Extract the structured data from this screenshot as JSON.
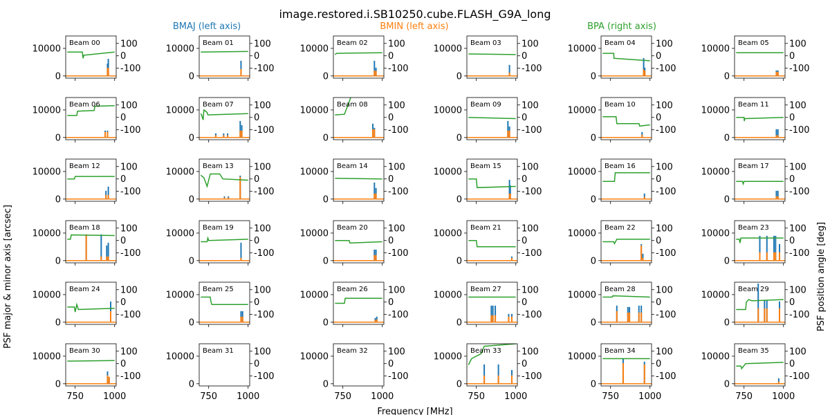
{
  "figure": {
    "title": "image.restored.i.SB10250.cube.FLASH_G9A_long",
    "xlabel": "Frequency [MHz]",
    "ylabel_left": "PSF major & minor axis [arcsec]",
    "ylabel_right": "PSF position angle [deg]",
    "legend": [
      {
        "label": "BMAJ (left axis)",
        "color": "#1f77b4"
      },
      {
        "label": "BMIN (left axis)",
        "color": "#ff7f0e"
      },
      {
        "label": "BPA (right axis)",
        "color": "#2ca02c"
      }
    ],
    "colors": {
      "bmaj": "#1f77b4",
      "bmin": "#ff7f0e",
      "bpa": "#2ca02c"
    }
  },
  "chart_data": {
    "type": "line",
    "grid": false,
    "layout": {
      "rows": 6,
      "cols": 6
    },
    "xlim": [
      690,
      1010
    ],
    "x_ticks": [
      750,
      1000
    ],
    "left_ylim": [
      -800,
      14500
    ],
    "left_y_ticks": [
      0,
      10000
    ],
    "right_ylim": [
      -180,
      160
    ],
    "right_y_ticks": [
      100,
      0,
      -100
    ],
    "beams": [
      {
        "label": "Beam 00",
        "bpa": [
          [
            700,
            30
          ],
          [
            795,
            30
          ],
          [
            800,
            -20
          ],
          [
            805,
            5
          ],
          [
            1000,
            30
          ]
        ],
        "peaks": [
          [
            955,
            4500,
            2800
          ],
          [
            960,
            6200,
            3000
          ]
        ]
      },
      {
        "label": "Beam 01",
        "bpa": [
          [
            700,
            30
          ],
          [
            1000,
            35
          ]
        ],
        "peaks": [
          [
            955,
            5500,
            2500
          ]
        ]
      },
      {
        "label": "Beam 02",
        "bpa": [
          [
            700,
            10
          ],
          [
            710,
            20
          ],
          [
            1000,
            25
          ]
        ],
        "peaks": [
          [
            950,
            5500,
            2000
          ],
          [
            960,
            3000,
            1800
          ]
        ]
      },
      {
        "label": "Beam 03",
        "bpa": [
          [
            700,
            15
          ],
          [
            1000,
            10
          ]
        ],
        "peaks": [
          [
            960,
            4000,
            1200
          ]
        ]
      },
      {
        "label": "Beam 04",
        "bpa": [
          [
            700,
            20
          ],
          [
            770,
            20
          ],
          [
            772,
            -20
          ],
          [
            1000,
            -40
          ]
        ],
        "peaks": [
          [
            960,
            6500,
            2500
          ],
          [
            967,
            3000,
            2000
          ]
        ]
      },
      {
        "label": "Beam 05",
        "bpa": [
          [
            700,
            25
          ],
          [
            1000,
            25
          ]
        ],
        "peaks": [
          [
            955,
            2000,
            1500
          ],
          [
            965,
            2000,
            1500
          ]
        ]
      },
      {
        "label": "Beam 06",
        "bpa": [
          [
            700,
            15
          ],
          [
            760,
            15
          ],
          [
            765,
            50
          ],
          [
            870,
            55
          ],
          [
            875,
            90
          ],
          [
            1000,
            95
          ]
        ],
        "peaks": [
          [
            940,
            2500,
            2000
          ],
          [
            955,
            2500,
            2000
          ]
        ]
      },
      {
        "label": "Beam 07",
        "bpa": [
          [
            700,
            30
          ],
          [
            705,
            20
          ],
          [
            715,
            -20
          ],
          [
            720,
            60
          ],
          [
            740,
            40
          ],
          [
            745,
            20
          ],
          [
            1000,
            30
          ]
        ],
        "peaks": [
          [
            795,
            1500,
            800
          ],
          [
            845,
            1500,
            800
          ],
          [
            870,
            1500,
            800
          ],
          [
            950,
            6000,
            2500
          ],
          [
            960,
            4500,
            2500
          ]
        ]
      },
      {
        "label": "Beam 08",
        "bpa": [
          [
            700,
            20
          ],
          [
            760,
            25
          ],
          [
            800,
            160
          ]
        ],
        "peaks": [
          [
            940,
            5000,
            3000
          ],
          [
            950,
            3500,
            3000
          ]
        ]
      },
      {
        "label": "Beam 09",
        "bpa": [
          [
            700,
            0
          ],
          [
            1000,
            -10
          ]
        ],
        "peaks": [
          [
            950,
            6000,
            2500
          ],
          [
            960,
            4000,
            2500
          ]
        ]
      },
      {
        "label": "Beam 10",
        "bpa": [
          [
            700,
            5
          ],
          [
            785,
            5
          ],
          [
            790,
            -50
          ],
          [
            930,
            -50
          ],
          [
            935,
            -70
          ],
          [
            1000,
            -60
          ]
        ],
        "peaks": [
          [
            950,
            2000,
            1000
          ]
        ]
      },
      {
        "label": "Beam 11",
        "bpa": [
          [
            700,
            0
          ],
          [
            750,
            0
          ],
          [
            752,
            -30
          ],
          [
            755,
            -10
          ],
          [
            1000,
            0
          ]
        ],
        "peaks": [
          [
            955,
            3000,
            800
          ],
          [
            965,
            3000,
            800
          ]
        ]
      },
      {
        "label": "Beam 12",
        "bpa": [
          [
            700,
            0
          ],
          [
            745,
            0
          ],
          [
            750,
            20
          ],
          [
            1000,
            20
          ]
        ],
        "peaks": [
          [
            945,
            3000,
            1500
          ],
          [
            960,
            4500,
            1500
          ]
        ]
      },
      {
        "label": "Beam 13",
        "bpa": [
          [
            700,
            30
          ],
          [
            720,
            10
          ],
          [
            740,
            -60
          ],
          [
            760,
            40
          ],
          [
            820,
            40
          ],
          [
            840,
            0
          ],
          [
            1000,
            -10
          ]
        ],
        "peaks": [
          [
            850,
            1000,
            500
          ],
          [
            875,
            1000,
            500
          ],
          [
            950,
            8500,
            8000
          ]
        ]
      },
      {
        "label": "Beam 14",
        "bpa": [
          [
            700,
            5
          ],
          [
            1000,
            0
          ]
        ],
        "peaks": [
          [
            950,
            6000,
            2000
          ],
          [
            960,
            4000,
            2000
          ]
        ]
      },
      {
        "label": "Beam 15",
        "bpa": [
          [
            700,
            0
          ],
          [
            750,
            0
          ],
          [
            755,
            -70
          ],
          [
            1000,
            -60
          ]
        ],
        "peaks": [
          [
            960,
            7000,
            2000
          ],
          [
            965,
            5000,
            2000
          ]
        ]
      },
      {
        "label": "Beam 16",
        "bpa": [
          [
            700,
            -20
          ],
          [
            775,
            -20
          ],
          [
            780,
            50
          ],
          [
            1000,
            50
          ]
        ],
        "peaks": [
          [
            965,
            2000,
            800
          ]
        ]
      },
      {
        "label": "Beam 17",
        "bpa": [
          [
            700,
            -20
          ],
          [
            740,
            -20
          ],
          [
            745,
            -40
          ],
          [
            750,
            -20
          ],
          [
            1000,
            -20
          ]
        ],
        "peaks": [
          [
            955,
            3000,
            1000
          ],
          [
            965,
            3000,
            1000
          ]
        ]
      },
      {
        "label": "Beam 18",
        "bpa": [
          [
            700,
            10
          ],
          [
            720,
            10
          ],
          [
            725,
            45
          ],
          [
            1000,
            40
          ]
        ],
        "peaks": [
          [
            820,
            9500,
            9500
          ],
          [
            915,
            9500,
            1500
          ],
          [
            950,
            5500,
            1500
          ],
          [
            960,
            6500,
            1500
          ]
        ]
      },
      {
        "label": "Beam 19",
        "bpa": [
          [
            700,
            -10
          ],
          [
            740,
            -10
          ],
          [
            745,
            20
          ],
          [
            750,
            0
          ],
          [
            1000,
            10
          ]
        ],
        "peaks": [
          [
            955,
            6500,
            1000
          ]
        ]
      },
      {
        "label": "Beam 20",
        "bpa": [
          [
            700,
            0
          ],
          [
            790,
            0
          ],
          [
            795,
            -20
          ],
          [
            1000,
            -10
          ]
        ],
        "peaks": [
          [
            950,
            4000,
            2000
          ],
          [
            960,
            4000,
            2000
          ]
        ]
      },
      {
        "label": "Beam 21",
        "bpa": [
          [
            700,
            0
          ],
          [
            750,
            0
          ],
          [
            755,
            -50
          ],
          [
            1000,
            -50
          ]
        ],
        "peaks": [
          [
            975,
            1500,
            1000
          ]
        ]
      },
      {
        "label": "Beam 22",
        "bpa": [
          [
            700,
            -10
          ],
          [
            770,
            -10
          ],
          [
            775,
            -25
          ],
          [
            790,
            10
          ],
          [
            1000,
            10
          ]
        ],
        "peaks": [
          [
            945,
            6000,
            5500
          ],
          [
            955,
            2500,
            1000
          ]
        ]
      },
      {
        "label": "Beam 23",
        "bpa": [
          [
            700,
            10
          ],
          [
            720,
            10
          ],
          [
            725,
            -20
          ],
          [
            730,
            20
          ],
          [
            1000,
            20
          ]
        ],
        "peaks": [
          [
            850,
            9000,
            3000
          ],
          [
            895,
            9000,
            3000
          ],
          [
            940,
            9000,
            3000
          ],
          [
            950,
            9000,
            3000
          ],
          [
            975,
            6000,
            3000
          ]
        ]
      },
      {
        "label": "Beam 24",
        "bpa": [
          [
            700,
            -40
          ],
          [
            745,
            -40
          ],
          [
            750,
            -80
          ],
          [
            760,
            -20
          ],
          [
            770,
            -60
          ],
          [
            1000,
            -50
          ]
        ],
        "peaks": [
          [
            975,
            7500,
            4000
          ]
        ]
      },
      {
        "label": "Beam 25",
        "bpa": [
          [
            700,
            40
          ],
          [
            760,
            40
          ],
          [
            765,
            0
          ],
          [
            770,
            -20
          ],
          [
            1000,
            -20
          ]
        ],
        "peaks": [
          [
            955,
            4000,
            2000
          ],
          [
            965,
            4000,
            2000
          ]
        ]
      },
      {
        "label": "Beam 26",
        "bpa": [
          [
            700,
            -10
          ],
          [
            760,
            -10
          ],
          [
            765,
            30
          ],
          [
            1000,
            30
          ]
        ],
        "peaks": [
          [
            955,
            1500,
            800
          ],
          [
            965,
            2000,
            1000
          ]
        ]
      },
      {
        "label": "Beam 27",
        "bpa": [
          [
            700,
            40
          ],
          [
            1000,
            40
          ]
        ],
        "peaks": [
          [
            845,
            6000,
            2500
          ],
          [
            855,
            6000,
            2500
          ],
          [
            870,
            6000,
            2500
          ],
          [
            955,
            3000,
            2000
          ],
          [
            975,
            3000,
            2000
          ]
        ]
      },
      {
        "label": "Beam 28",
        "bpa": [
          [
            700,
            40
          ],
          [
            760,
            40
          ],
          [
            765,
            50
          ],
          [
            1000,
            40
          ]
        ],
        "peaks": [
          [
            790,
            6000,
            4000
          ],
          [
            860,
            5500,
            3500
          ],
          [
            870,
            5500,
            3500
          ],
          [
            930,
            6000,
            3500
          ],
          [
            945,
            6000,
            3500
          ]
        ]
      },
      {
        "label": "Beam 29",
        "bpa": [
          [
            700,
            -60
          ],
          [
            760,
            -60
          ],
          [
            765,
            0
          ],
          [
            780,
            20
          ],
          [
            800,
            10
          ],
          [
            1000,
            20
          ]
        ],
        "peaks": [
          [
            840,
            14000,
            5000
          ],
          [
            880,
            8000,
            5000
          ],
          [
            895,
            8000,
            5000
          ],
          [
            975,
            7500,
            5000
          ]
        ]
      },
      {
        "label": "Beam 30",
        "bpa": [
          [
            700,
            20
          ],
          [
            1000,
            25
          ]
        ],
        "peaks": [
          [
            955,
            4500,
            3000
          ],
          [
            965,
            2500,
            2500
          ]
        ]
      },
      {
        "label": "Beam 31",
        "bpa": [],
        "peaks": []
      },
      {
        "label": "Beam 32",
        "bpa": [],
        "peaks": []
      },
      {
        "label": "Beam 33",
        "bpa": [
          [
            700,
            -10
          ],
          [
            720,
            40
          ],
          [
            780,
            80
          ],
          [
            800,
            140
          ],
          [
            1000,
            160
          ]
        ],
        "peaks": [
          [
            800,
            7000,
            3000
          ],
          [
            890,
            7000,
            3000
          ],
          [
            975,
            5000,
            3000
          ]
        ]
      },
      {
        "label": "Beam 34",
        "bpa": [
          [
            700,
            40
          ],
          [
            1000,
            40
          ]
        ],
        "peaks": [
          [
            830,
            9000,
            7500
          ],
          [
            965,
            8000,
            7000
          ]
        ]
      },
      {
        "label": "Beam 35",
        "bpa": [
          [
            700,
            -20
          ],
          [
            730,
            -20
          ],
          [
            735,
            -40
          ],
          [
            760,
            0
          ],
          [
            1000,
            10
          ]
        ],
        "peaks": [
          [
            970,
            2000,
            800
          ]
        ]
      }
    ]
  }
}
